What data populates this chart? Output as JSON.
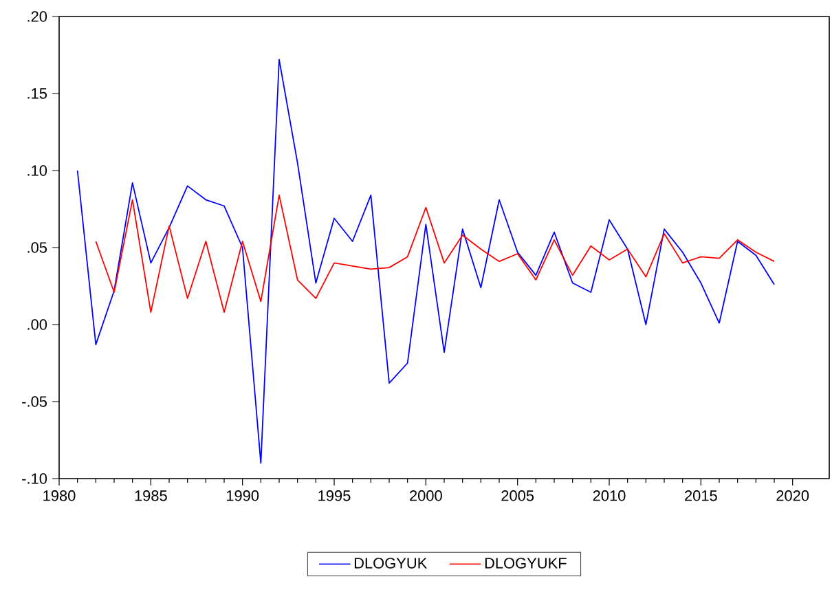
{
  "chart_data": {
    "type": "line",
    "x": [
      1981,
      1982,
      1983,
      1984,
      1985,
      1986,
      1987,
      1988,
      1989,
      1990,
      1991,
      1992,
      1993,
      1994,
      1995,
      1996,
      1997,
      1998,
      1999,
      2000,
      2001,
      2002,
      2003,
      2004,
      2005,
      2006,
      2007,
      2008,
      2009,
      2010,
      2011,
      2012,
      2013,
      2014,
      2015,
      2016,
      2017,
      2018,
      2019
    ],
    "series": [
      {
        "name": "DLOGYUK",
        "color": "#0000ff",
        "values": [
          0.1,
          -0.013,
          0.022,
          0.092,
          0.04,
          0.063,
          0.09,
          0.081,
          0.077,
          0.05,
          -0.09,
          0.172,
          0.105,
          0.027,
          0.069,
          0.054,
          0.084,
          -0.038,
          -0.025,
          0.065,
          -0.018,
          0.062,
          0.024,
          0.081,
          0.047,
          0.032,
          0.06,
          0.027,
          0.021,
          0.068,
          0.049,
          0.0,
          0.062,
          0.047,
          0.027,
          0.001,
          0.054,
          0.045,
          0.026
        ]
      },
      {
        "name": "DLOGYUKF",
        "color": "#ff0000",
        "values": [
          null,
          0.054,
          0.021,
          0.081,
          0.008,
          0.064,
          0.017,
          0.054,
          0.008,
          0.054,
          0.015,
          0.084,
          0.029,
          0.017,
          0.04,
          0.038,
          0.036,
          0.037,
          0.044,
          0.076,
          0.04,
          0.058,
          0.049,
          0.041,
          0.046,
          0.029,
          0.055,
          0.032,
          0.051,
          0.042,
          0.049,
          0.031,
          0.059,
          0.04,
          0.044,
          0.043,
          0.055,
          0.047,
          0.041
        ]
      }
    ],
    "xlim": [
      1980,
      2022
    ],
    "xticks": [
      1980,
      1985,
      1990,
      1995,
      2000,
      2005,
      2010,
      2015,
      2020
    ],
    "ylim": [
      -0.1,
      0.2
    ],
    "yticks": [
      {
        "value": -0.1,
        "label": "-.10"
      },
      {
        "value": -0.05,
        "label": "-.05"
      },
      {
        "value": 0.0,
        "label": ".00"
      },
      {
        "value": 0.05,
        "label": ".05"
      },
      {
        "value": 0.1,
        "label": ".10"
      },
      {
        "value": 0.15,
        "label": ".15"
      },
      {
        "value": 0.2,
        "label": ".20"
      }
    ],
    "grid": false,
    "legend": "bottom",
    "marker": "none",
    "line_style": "solid"
  }
}
